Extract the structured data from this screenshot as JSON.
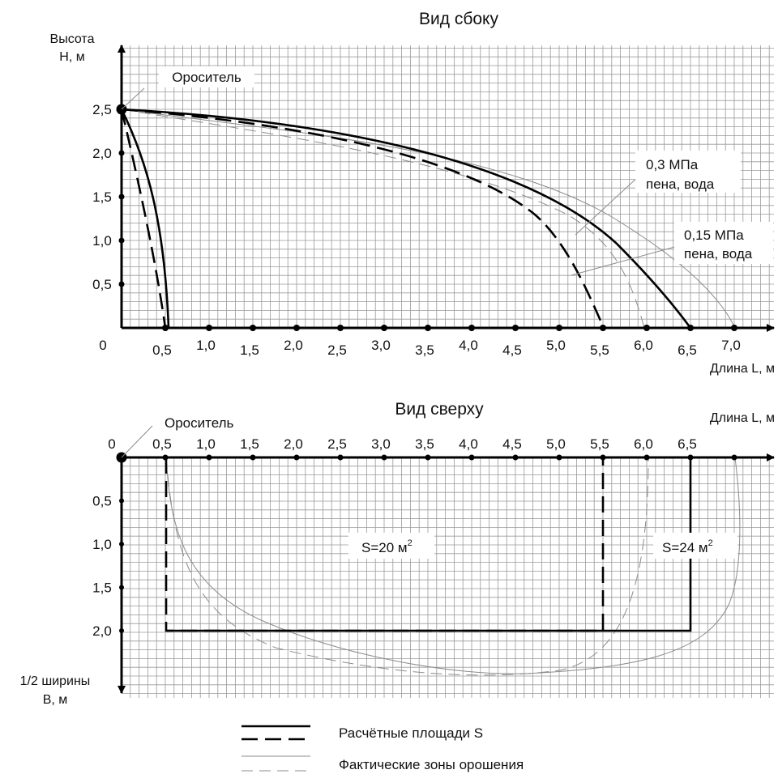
{
  "side_view": {
    "title": "Вид сбоку",
    "y_axis_label_line1": "Высота",
    "y_axis_label_line2": "Н, м",
    "x_axis_label": "Длина L, м",
    "origin_label": "0",
    "sprinkler_label": "Ороситель",
    "x_ticks": [
      "0,5",
      "1,0",
      "1,5",
      "2,0",
      "2,5",
      "3,0",
      "3,5",
      "4,0",
      "4,5",
      "5,0",
      "5,5",
      "6,0",
      "6,5",
      "7,0"
    ],
    "y_ticks": [
      "0,5",
      "1,0",
      "1,5",
      "2,0",
      "2,5"
    ],
    "callout_03_line1": "0,3 МПа",
    "callout_03_line2": "пена, вода",
    "callout_015_line1": "0,15 МПа",
    "callout_015_line2": "пена, вода"
  },
  "top_view": {
    "title": "Вид сверху",
    "x_axis_label": "Длина L, м",
    "y_axis_label_line1": "1/2 ширины",
    "y_axis_label_line2": "В, м",
    "origin_label": "0",
    "sprinkler_label": "Ороситель",
    "x_ticks": [
      "0,5",
      "1,0",
      "1,5",
      "2,0",
      "2,5",
      "3,0",
      "3,5",
      "4,0",
      "4,5",
      "5,0",
      "5,5",
      "6,0",
      "6,5"
    ],
    "y_ticks": [
      "0,5",
      "1,0",
      "1,5",
      "2,0"
    ],
    "area_20_label": "S=20 м",
    "area_24_label": "S=24 м",
    "area_superscript": "2"
  },
  "legend": {
    "design_area_label": "Расчётные площади S",
    "actual_zone_label": "Фактические зоны орошения"
  },
  "colors": {
    "main_line": "#000000",
    "thin_line": "#8c8c8c",
    "grid": "#9a9a9a"
  }
}
